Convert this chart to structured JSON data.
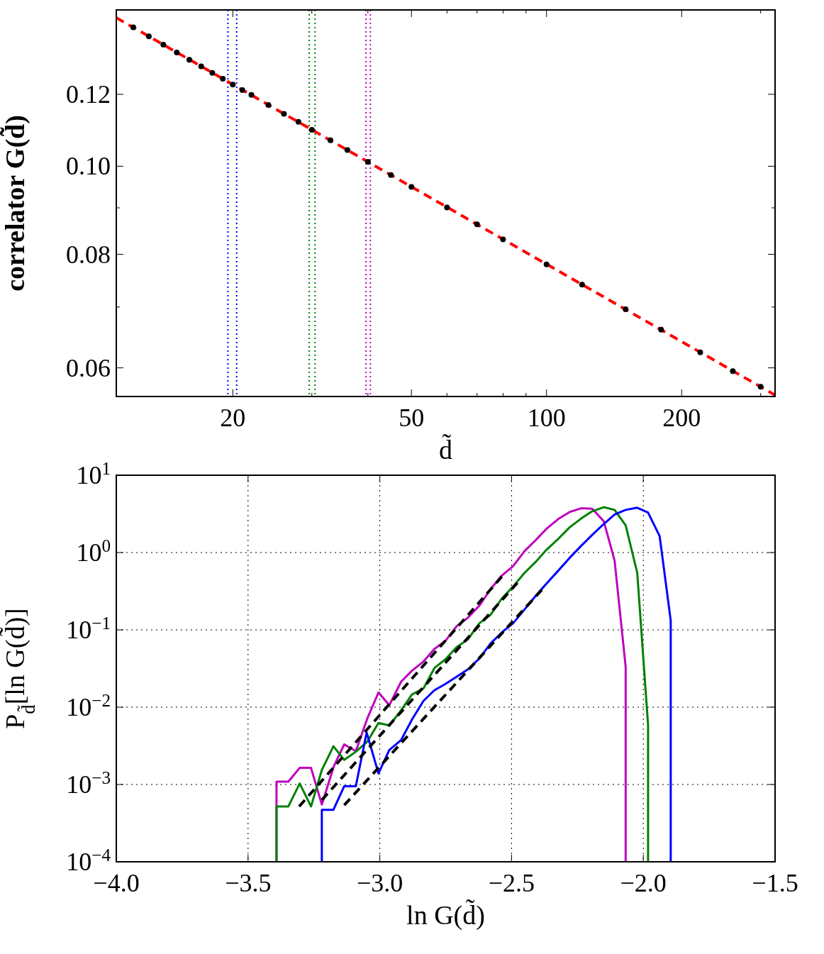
{
  "chart_data": [
    {
      "type": "scatter",
      "xlabel": "d̃",
      "ylabel": "correlator G(d̃)",
      "log": "xy",
      "xlim": [
        11,
        323
      ],
      "ylim": [
        0.0558,
        0.1486
      ],
      "xticks": [
        20,
        {
          "value": 30,
          "label": null
        },
        {
          "value": 40,
          "label": null
        },
        50,
        {
          "value": 60,
          "label": null
        },
        {
          "value": 70,
          "label": null
        },
        {
          "value": 80,
          "label": null
        },
        {
          "value": 90,
          "label": null
        },
        100,
        200,
        {
          "value": 300,
          "label": null
        }
      ],
      "yticks": [
        {
          "value": 0.06,
          "label": "0.06"
        },
        {
          "value": 0.07,
          "label": null
        },
        {
          "value": 0.08,
          "label": "0.08"
        },
        {
          "value": 0.09,
          "label": null
        },
        {
          "value": 0.1,
          "label": "0.10"
        },
        0.12
      ],
      "marker": "circle",
      "grid": false,
      "series": [
        {
          "color": "#000000",
          "x": [
            12,
            13,
            14,
            15,
            16,
            17,
            18,
            19,
            20,
            21,
            22,
            24,
            26,
            28,
            30,
            33,
            36,
            40,
            45,
            50,
            60,
            70,
            80,
            100,
            120,
            150,
            180,
            220,
            260,
            300
          ],
          "values": [
            0.1422,
            0.139,
            0.1361,
            0.1334,
            0.131,
            0.1288,
            0.1267,
            0.1248,
            0.123,
            0.1213,
            0.1198,
            0.1168,
            0.1142,
            0.1119,
            0.1097,
            0.1068,
            0.1042,
            0.1011,
            0.0978,
            0.0949,
            0.0901,
            0.0863,
            0.0831,
            0.078,
            0.0741,
            0.0696,
            0.0661,
            0.0624,
            0.0595,
            0.0572
          ]
        },
        {
          "type": "line",
          "color": "#ff0000",
          "line_style": "dashed",
          "marker": "none",
          "x": [
            11,
            323
          ],
          "values": [
            0.1457,
            0.056
          ]
        }
      ],
      "ref_lines": [
        {
          "axis": "x",
          "value": 19.5,
          "color": "#0000ff",
          "line_style": "dotted"
        },
        {
          "axis": "x",
          "value": 20.4,
          "color": "#0000ff",
          "line_style": "dotted"
        },
        {
          "axis": "x",
          "value": 29.6,
          "color": "#008000",
          "line_style": "dotted"
        },
        {
          "axis": "x",
          "value": 30.5,
          "color": "#008000",
          "line_style": "dotted"
        },
        {
          "axis": "x",
          "value": 39.6,
          "color": "#bf00bf",
          "line_style": "dotted"
        },
        {
          "axis": "x",
          "value": 40.5,
          "color": "#bf00bf",
          "line_style": "dotted"
        }
      ]
    },
    {
      "type": "line",
      "xlabel": "ln G(d̃)",
      "ylabel": "P$_{d̃}$[ln G(d̃)]",
      "log": "y",
      "xlim": [
        -4,
        -1.5
      ],
      "ylim": [
        0.0001,
        10
      ],
      "xticks": [
        {
          "value": -4,
          "label": "−4.0"
        },
        {
          "value": -3.5,
          "label": "−3.5"
        },
        {
          "value": -3,
          "label": "−3.0"
        },
        {
          "value": -2.5,
          "label": "−2.5"
        },
        {
          "value": -2,
          "label": "−2.0"
        },
        {
          "value": -1.5,
          "label": "−1.5"
        }
      ],
      "yticks": [
        {
          "value": 0.0001,
          "label": "10$^{−4}$"
        },
        {
          "value": 0.001,
          "label": "10$^{−3}$"
        },
        {
          "value": 0.01,
          "label": "10$^{−2}$"
        },
        {
          "value": 0.1,
          "label": "10$^{−1}$"
        },
        {
          "value": 1,
          "label": "10$^{0}$"
        },
        {
          "value": 10,
          "label": "10$^{1}$"
        }
      ],
      "grid": true,
      "marker": "none",
      "series": [
        {
          "color": "#bf00bf",
          "x": [
            -3.392,
            -3.392,
            -3.347,
            -3.304,
            -3.261,
            -3.22,
            -3.174,
            -3.135,
            -3.091,
            -3.047,
            -3.005,
            -2.964,
            -2.919,
            -2.878,
            -2.834,
            -2.793,
            -2.751,
            -2.708,
            -2.666,
            -2.622,
            -2.58,
            -2.538,
            -2.494,
            -2.451,
            -2.409,
            -2.368,
            -2.323,
            -2.28,
            -2.236,
            -2.194,
            -2.15,
            -2.109,
            -2.067,
            -2.067
          ],
          "values": [
            0.0001,
            0.00109,
            0.00109,
            0.00164,
            0.00164,
            0.00055,
            0.00174,
            0.0033,
            0.0027,
            0.0072,
            0.0155,
            0.0106,
            0.0214,
            0.0296,
            0.039,
            0.0565,
            0.072,
            0.112,
            0.143,
            0.206,
            0.335,
            0.5,
            0.667,
            1.04,
            1.44,
            2.02,
            2.71,
            3.34,
            3.74,
            3.68,
            2.54,
            0.785,
            0.0334,
            0.0001
          ]
        },
        {
          "color": "#008000",
          "x": [
            -3.392,
            -3.392,
            -3.347,
            -3.304,
            -3.261,
            -3.22,
            -3.176,
            -3.135,
            -3.091,
            -3.047,
            -3.005,
            -2.964,
            -2.919,
            -2.878,
            -2.834,
            -2.793,
            -2.751,
            -2.708,
            -2.666,
            -2.622,
            -2.58,
            -2.538,
            -2.494,
            -2.451,
            -2.409,
            -2.368,
            -2.323,
            -2.28,
            -2.236,
            -2.194,
            -2.15,
            -2.109,
            -2.067,
            -2.023,
            -1.982,
            -1.982
          ],
          "values": [
            0.0001,
            0.00052,
            0.00052,
            0.00103,
            0.00052,
            0.00154,
            0.00312,
            0.00208,
            0.00265,
            0.0036,
            0.00625,
            0.0058,
            0.0091,
            0.0146,
            0.0175,
            0.032,
            0.0416,
            0.0598,
            0.075,
            0.122,
            0.156,
            0.252,
            0.364,
            0.545,
            0.753,
            1.08,
            1.5,
            2.11,
            2.75,
            3.42,
            3.86,
            3.56,
            2.25,
            0.545,
            0.0059,
            0.0001
          ]
        },
        {
          "color": "#0000ff",
          "x": [
            -3.22,
            -3.22,
            -3.176,
            -3.135,
            -3.091,
            -3.05,
            -3.005,
            -2.964,
            -2.919,
            -2.878,
            -2.834,
            -2.793,
            -2.751,
            -2.708,
            -2.666,
            -2.622,
            -2.58,
            -2.538,
            -2.494,
            -2.451,
            -2.409,
            -2.368,
            -2.323,
            -2.28,
            -2.236,
            -2.194,
            -2.15,
            -2.109,
            -2.067,
            -2.023,
            -1.982,
            -1.938,
            -1.896,
            -1.896
          ],
          "values": [
            0.0001,
            0.00047,
            0.00047,
            0.00095,
            0.00095,
            0.0047,
            0.00139,
            0.00279,
            0.00376,
            0.0069,
            0.0121,
            0.0165,
            0.02,
            0.0248,
            0.0308,
            0.0426,
            0.0664,
            0.092,
            0.122,
            0.183,
            0.274,
            0.394,
            0.582,
            0.851,
            1.22,
            1.69,
            2.34,
            3.1,
            3.56,
            3.8,
            3.29,
            1.63,
            0.132,
            0.0001
          ]
        },
        {
          "color": "#000000",
          "line_style": "dashed",
          "x": [
            -3.306,
            -2.534
          ],
          "values": [
            0.00052,
            0.5
          ]
        },
        {
          "color": "#000000",
          "line_style": "dashed",
          "x": [
            -3.22,
            -2.471
          ],
          "values": [
            0.00063,
            0.43
          ]
        },
        {
          "color": "#000000",
          "line_style": "dashed",
          "x": [
            -3.135,
            -2.378
          ],
          "values": [
            0.00054,
            0.35
          ]
        }
      ]
    }
  ]
}
